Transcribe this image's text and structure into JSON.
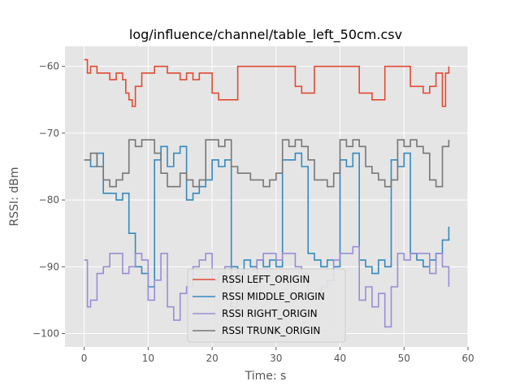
{
  "chart_data": {
    "type": "line",
    "title": "log/influence/channel/table_left_50cm.csv",
    "xlabel": "Time: s",
    "ylabel": "RSSI: dBm",
    "xlim": [
      -3,
      60
    ],
    "ylim": [
      -102,
      -57
    ],
    "xticks": [
      0,
      10,
      20,
      30,
      40,
      50,
      60
    ],
    "yticks": [
      -60,
      -70,
      -80,
      -90,
      -100
    ],
    "xtick_labels": [
      "0",
      "10",
      "20",
      "30",
      "40",
      "50",
      "60"
    ],
    "ytick_labels": [
      "−60",
      "−70",
      "−80",
      "−90",
      "−100"
    ],
    "grid": true,
    "legend_position": "lower-center",
    "background": "#e5e5e5",
    "series": [
      {
        "name": "RSSI LEFT_ORIGIN",
        "color": "#e24a33",
        "x": [
          0,
          0.5,
          1,
          2,
          3,
          4,
          5,
          6,
          6.5,
          7,
          7.5,
          8,
          9,
          10,
          11,
          12,
          13,
          14,
          15,
          16,
          17,
          18,
          19,
          20,
          21,
          22,
          23,
          24,
          25,
          26,
          27,
          28,
          29,
          30,
          31,
          32,
          33,
          34,
          35,
          36,
          37,
          38,
          39,
          40,
          41,
          42,
          43,
          44,
          45,
          46,
          47,
          48,
          49,
          50,
          51,
          52,
          53,
          54,
          55,
          56,
          56.5,
          57
        ],
        "y": [
          -59,
          -61,
          -60,
          -61,
          -61,
          -62,
          -61,
          -62,
          -64,
          -65,
          -66,
          -63,
          -61,
          -61,
          -60,
          -60,
          -61,
          -61,
          -62,
          -61,
          -62,
          -61,
          -61,
          -64,
          -65,
          -65,
          -65,
          -60,
          -60,
          -60,
          -60,
          -60,
          -60,
          -60,
          -60,
          -60,
          -63,
          -64,
          -64,
          -60,
          -60,
          -60,
          -60,
          -60,
          -60,
          -60,
          -64,
          -64,
          -65,
          -65,
          -60,
          -60,
          -60,
          -60,
          -63,
          -63,
          -64,
          -63,
          -61,
          -66,
          -61,
          -60
        ]
      },
      {
        "name": "RSSI MIDDLE_ORIGIN",
        "color": "#348abd",
        "x": [
          0,
          1,
          2,
          3,
          4,
          5,
          6,
          7,
          8,
          9,
          10,
          11,
          12,
          13,
          14,
          15,
          16,
          17,
          18,
          19,
          20,
          21,
          22,
          23,
          24,
          25,
          26,
          27,
          28,
          29,
          30,
          31,
          32,
          33,
          34,
          35,
          36,
          37,
          38,
          39,
          40,
          41,
          42,
          43,
          44,
          45,
          46,
          47,
          48,
          49,
          50,
          51,
          52,
          53,
          54,
          55,
          56,
          57
        ],
        "y": [
          -74,
          -75,
          -73,
          -79,
          -79,
          -80,
          -79,
          -85,
          -90,
          -91,
          -93,
          -74,
          -72,
          -75,
          -73,
          -72,
          -80,
          -79,
          -78,
          -77,
          -74,
          -75,
          -74,
          -90,
          -91,
          -89,
          -90,
          -89,
          -90,
          -89,
          -90,
          -74,
          -74,
          -73,
          -75,
          -88,
          -89,
          -90,
          -89,
          -90,
          -74,
          -75,
          -73,
          -89,
          -90,
          -91,
          -89,
          -90,
          -74,
          -75,
          -73,
          -88,
          -89,
          -90,
          -89,
          -88,
          -86,
          -84
        ]
      },
      {
        "name": "RSSI RIGHT_ORIGIN",
        "color": "#988ed5",
        "x": [
          0,
          0.5,
          1,
          2,
          3,
          4,
          5,
          6,
          7,
          8,
          9,
          10,
          11,
          12,
          13,
          14,
          15,
          16,
          17,
          18,
          19,
          20,
          21,
          22,
          23,
          24,
          25,
          26,
          27,
          28,
          29,
          30,
          31,
          32,
          33,
          34,
          35,
          36,
          37,
          38,
          39,
          40,
          41,
          42,
          43,
          44,
          45,
          46,
          47,
          48,
          49,
          50,
          51,
          52,
          53,
          54,
          55,
          56,
          57
        ],
        "y": [
          -89,
          -96,
          -95,
          -91,
          -90,
          -88,
          -88,
          -91,
          -90,
          -88,
          -89,
          -95,
          -92,
          -88,
          -96,
          -98,
          -94,
          -93,
          -90,
          -89,
          -88,
          -92,
          -91,
          -90,
          -96,
          -95,
          -94,
          -93,
          -89,
          -88,
          -88,
          -89,
          -88,
          -88,
          -90,
          -91,
          -95,
          -94,
          -93,
          -92,
          -89,
          -88,
          -88,
          -87,
          -95,
          -93,
          -96,
          -94,
          -99,
          -93,
          -88,
          -89,
          -88,
          -88,
          -88,
          -91,
          -88,
          -90,
          -93
        ]
      },
      {
        "name": "RSSI TRUNK_ORIGIN",
        "color": "#777777",
        "x": [
          0,
          1,
          2,
          3,
          4,
          5,
          6,
          7,
          8,
          9,
          10,
          11,
          12,
          13,
          14,
          15,
          16,
          17,
          18,
          19,
          20,
          21,
          22,
          23,
          24,
          25,
          26,
          27,
          28,
          29,
          30,
          31,
          32,
          33,
          34,
          35,
          36,
          37,
          38,
          39,
          40,
          41,
          42,
          43,
          44,
          45,
          46,
          47,
          48,
          49,
          50,
          51,
          52,
          53,
          54,
          55,
          56,
          57
        ],
        "y": [
          -74,
          -73,
          -75,
          -77,
          -78,
          -77,
          -76,
          -71,
          -72,
          -71,
          -71,
          -73,
          -76,
          -78,
          -78,
          -76,
          -77,
          -78,
          -77,
          -71,
          -71,
          -72,
          -71,
          -75,
          -76,
          -76,
          -77,
          -77,
          -78,
          -77,
          -76,
          -71,
          -72,
          -71,
          -72,
          -74,
          -77,
          -77,
          -78,
          -76,
          -71,
          -72,
          -71,
          -72,
          -75,
          -76,
          -77,
          -78,
          -77,
          -71,
          -72,
          -71,
          -72,
          -73,
          -77,
          -78,
          -72,
          -71
        ]
      }
    ]
  }
}
